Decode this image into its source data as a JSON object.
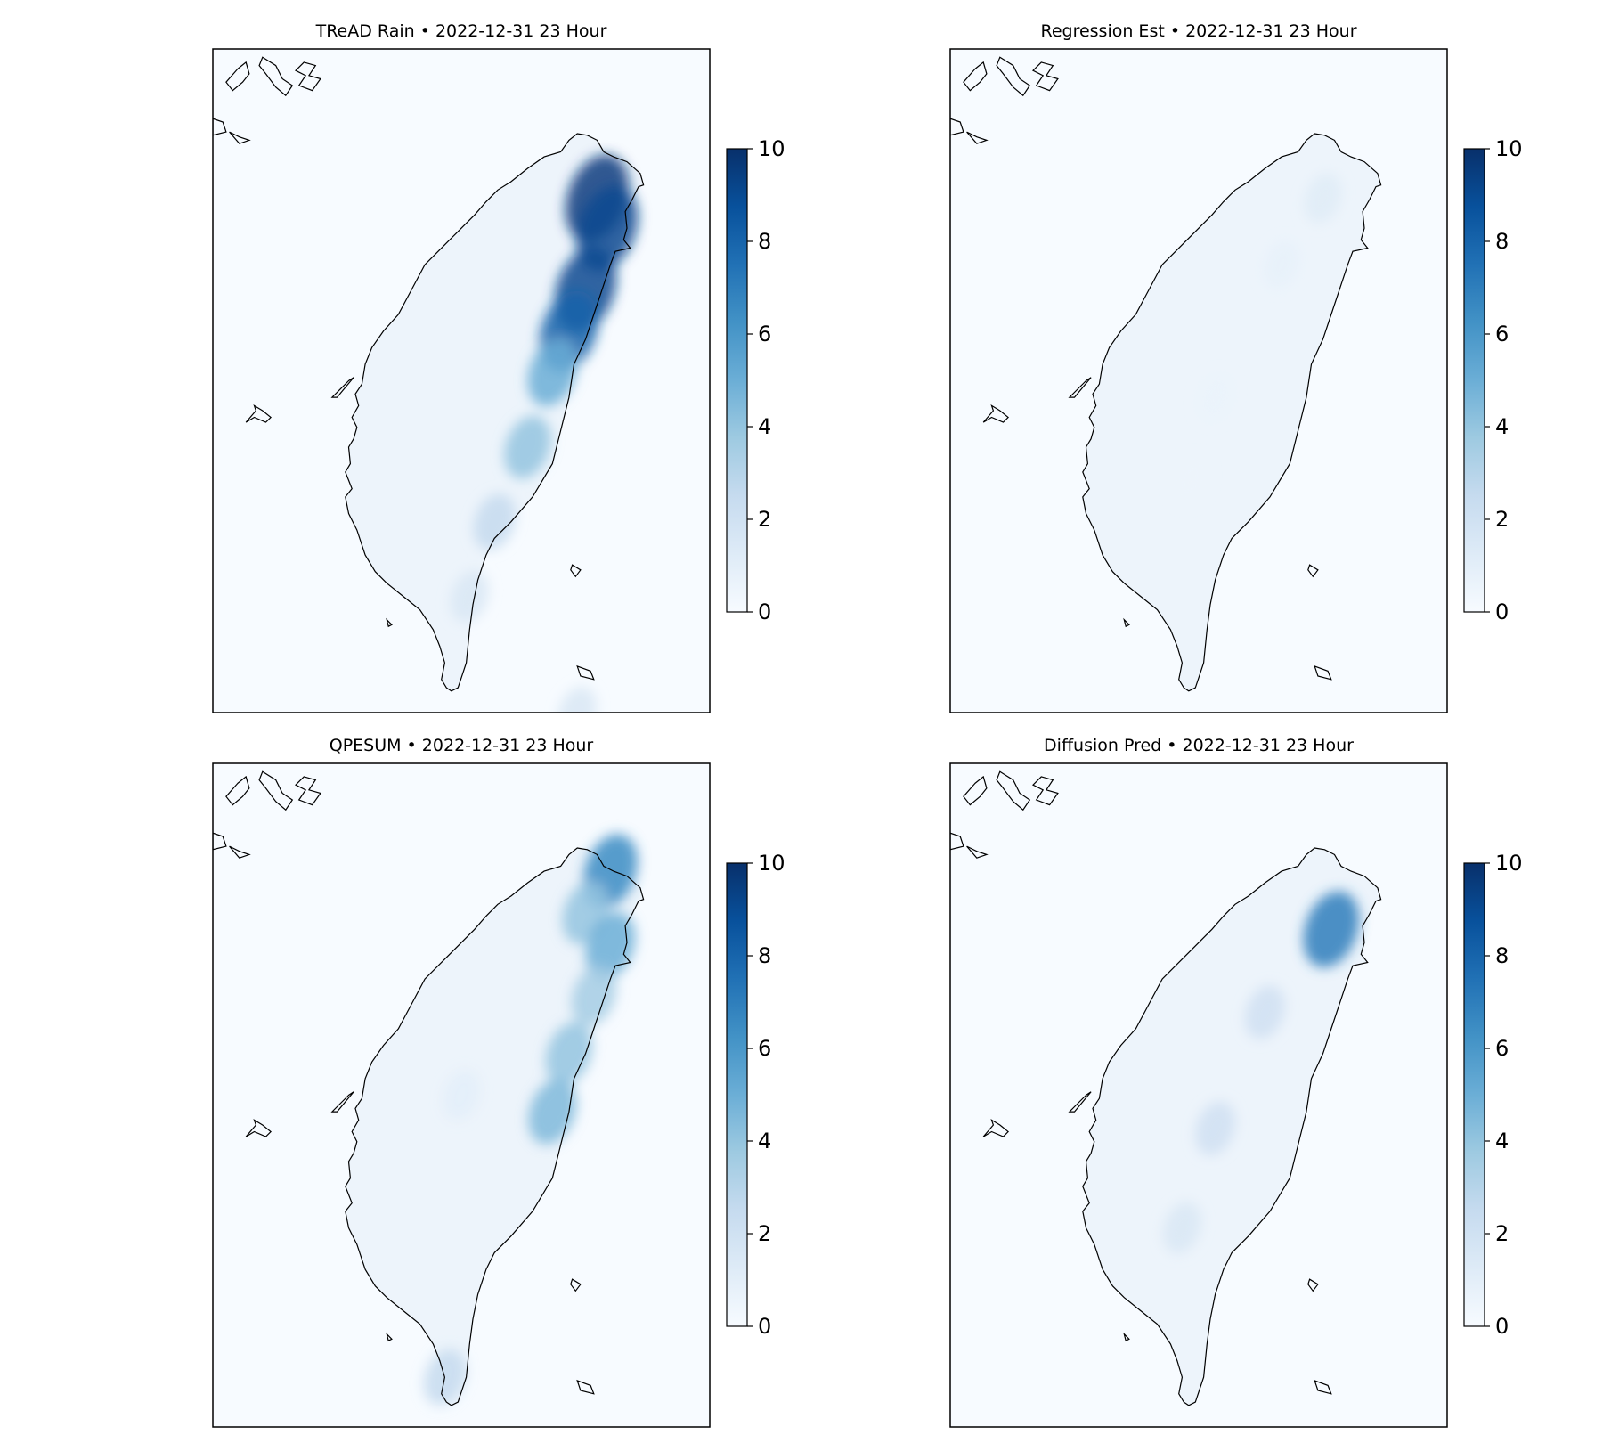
{
  "chart_data": [
    {
      "type": "heatmap",
      "title": "TReAD Rain • 2022-12-31 23 Hour",
      "colormap": "Blues",
      "color_range": [
        0,
        10
      ],
      "colorbar_ticks": [
        "0",
        "2",
        "4",
        "6",
        "8",
        "10"
      ],
      "rain_features": [
        {
          "lon": 121.62,
          "lat": 24.9,
          "value": 9.5
        },
        {
          "lon": 121.68,
          "lat": 24.72,
          "value": 9.0
        },
        {
          "lon": 121.55,
          "lat": 24.35,
          "value": 9.0
        },
        {
          "lon": 121.45,
          "lat": 24.1,
          "value": 8.0
        },
        {
          "lon": 121.35,
          "lat": 23.85,
          "value": 5.0
        },
        {
          "lon": 121.2,
          "lat": 23.4,
          "value": 4.0
        },
        {
          "lon": 121.0,
          "lat": 22.95,
          "value": 2.5
        },
        {
          "lon": 120.85,
          "lat": 22.5,
          "value": 1.5
        },
        {
          "lon": 121.5,
          "lat": 21.8,
          "value": 1.5
        }
      ]
    },
    {
      "type": "heatmap",
      "title": "Regression Est • 2022-12-31 23 Hour",
      "colormap": "Blues",
      "color_range": [
        0,
        10
      ],
      "colorbar_ticks": [
        "0",
        "2",
        "4",
        "6",
        "8",
        "10"
      ],
      "rain_features": [
        {
          "lon": 121.55,
          "lat": 24.9,
          "value": 1.2
        },
        {
          "lon": 121.3,
          "lat": 24.5,
          "value": 0.8
        },
        {
          "lon": 120.9,
          "lat": 23.7,
          "value": 0.6
        },
        {
          "lon": 120.75,
          "lat": 23.2,
          "value": 0.5
        }
      ]
    },
    {
      "type": "heatmap",
      "title": "QPESUM • 2022-12-31 23 Hour",
      "colormap": "Blues",
      "color_range": [
        0,
        10
      ],
      "colorbar_ticks": [
        "0",
        "2",
        "4",
        "6",
        "8",
        "10"
      ],
      "rain_features": [
        {
          "lon": 121.7,
          "lat": 25.15,
          "value": 6.5
        },
        {
          "lon": 121.55,
          "lat": 24.9,
          "value": 4.0
        },
        {
          "lon": 121.7,
          "lat": 24.7,
          "value": 5.0
        },
        {
          "lon": 121.6,
          "lat": 24.4,
          "value": 3.5
        },
        {
          "lon": 121.45,
          "lat": 24.05,
          "value": 4.0
        },
        {
          "lon": 121.35,
          "lat": 23.7,
          "value": 4.5
        },
        {
          "lon": 120.8,
          "lat": 23.8,
          "value": 1.0
        },
        {
          "lon": 120.7,
          "lat": 22.1,
          "value": 2.5
        }
      ]
    },
    {
      "type": "heatmap",
      "title": "Diffusion Pred • 2022-12-31 23 Hour",
      "colormap": "Blues",
      "color_range": [
        0,
        10
      ],
      "colorbar_ticks": [
        "0",
        "2",
        "4",
        "6",
        "8",
        "10"
      ],
      "rain_features": [
        {
          "lon": 121.6,
          "lat": 24.8,
          "value": 7.0
        },
        {
          "lon": 121.2,
          "lat": 24.3,
          "value": 2.0
        },
        {
          "lon": 120.9,
          "lat": 23.6,
          "value": 2.0
        },
        {
          "lon": 120.7,
          "lat": 23.0,
          "value": 1.5
        }
      ]
    }
  ]
}
